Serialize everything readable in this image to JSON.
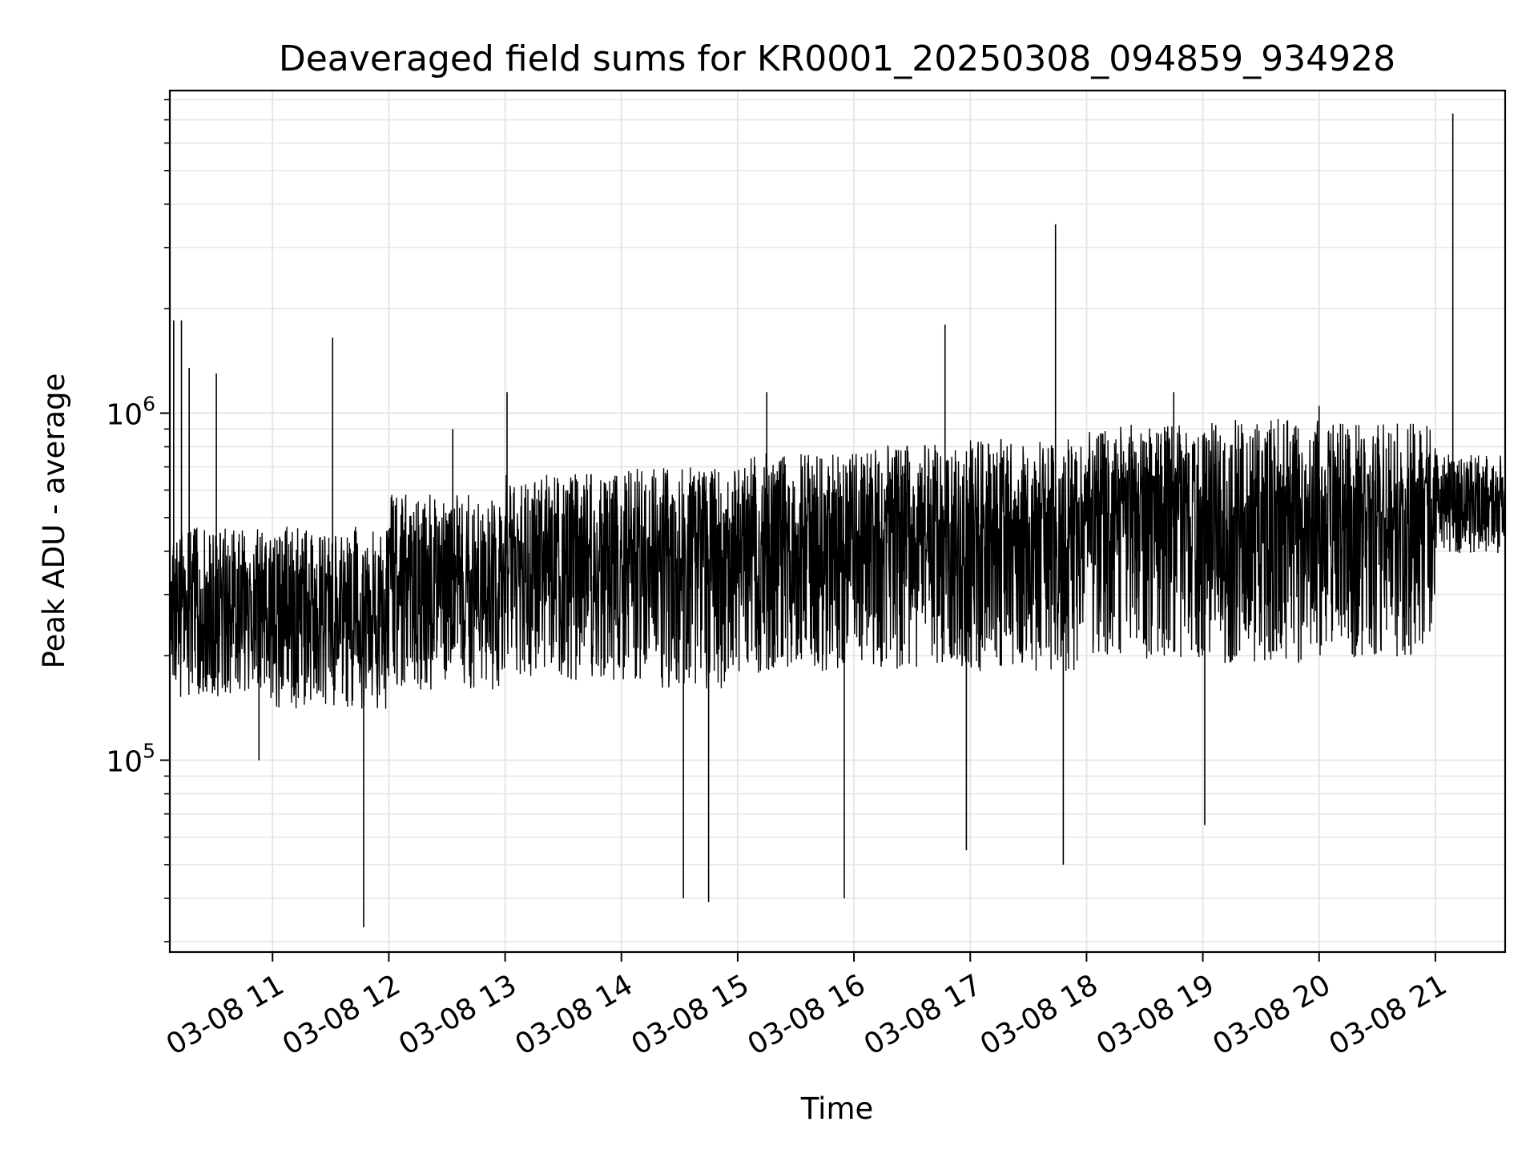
{
  "chart_data": {
    "type": "line",
    "title": "Deaveraged field sums for KR0001_20250308_094859_934928",
    "xlabel": "Time",
    "ylabel": "Peak ADU - average",
    "yscale": "log",
    "xlim": [
      "2025-03-08 10:07",
      "2025-03-08 21:36"
    ],
    "ylim": [
      28000,
      8500000
    ],
    "grid": "on",
    "legend": "none",
    "line_color": "#000000",
    "x_ticks": [
      {
        "x": "2025-03-08 11:00",
        "label": "03-08 11"
      },
      {
        "x": "2025-03-08 12:00",
        "label": "03-08 12"
      },
      {
        "x": "2025-03-08 13:00",
        "label": "03-08 13"
      },
      {
        "x": "2025-03-08 14:00",
        "label": "03-08 14"
      },
      {
        "x": "2025-03-08 15:00",
        "label": "03-08 15"
      },
      {
        "x": "2025-03-08 16:00",
        "label": "03-08 16"
      },
      {
        "x": "2025-03-08 17:00",
        "label": "03-08 17"
      },
      {
        "x": "2025-03-08 18:00",
        "label": "03-08 18"
      },
      {
        "x": "2025-03-08 19:00",
        "label": "03-08 19"
      },
      {
        "x": "2025-03-08 20:00",
        "label": "03-08 20"
      },
      {
        "x": "2025-03-08 21:00",
        "label": "03-08 21"
      }
    ],
    "y_ticks": [
      {
        "value": 100000,
        "base": "10",
        "exp": "5"
      },
      {
        "value": 1000000,
        "base": "10",
        "exp": "6"
      }
    ],
    "segments": [
      {
        "start": "2025-03-08 10:07",
        "end": "2025-03-08 11:00",
        "y_low": 180000,
        "y_typical": 270000,
        "y_high": 420000
      },
      {
        "start": "2025-03-08 11:00",
        "end": "2025-03-08 12:00",
        "y_low": 170000,
        "y_typical": 260000,
        "y_high": 420000
      },
      {
        "start": "2025-03-08 12:00",
        "end": "2025-03-08 13:00",
        "y_low": 200000,
        "y_typical": 330000,
        "y_high": 520000
      },
      {
        "start": "2025-03-08 13:00",
        "end": "2025-03-08 14:00",
        "y_low": 220000,
        "y_typical": 390000,
        "y_high": 600000
      },
      {
        "start": "2025-03-08 14:00",
        "end": "2025-03-08 15:00",
        "y_low": 210000,
        "y_typical": 380000,
        "y_high": 620000
      },
      {
        "start": "2025-03-08 15:00",
        "end": "2025-03-08 16:00",
        "y_low": 230000,
        "y_typical": 420000,
        "y_high": 680000
      },
      {
        "start": "2025-03-08 16:00",
        "end": "2025-03-08 17:00",
        "y_low": 240000,
        "y_typical": 440000,
        "y_high": 720000
      },
      {
        "start": "2025-03-08 17:00",
        "end": "2025-03-08 18:00",
        "y_low": 240000,
        "y_typical": 460000,
        "y_high": 750000
      },
      {
        "start": "2025-03-08 18:00",
        "end": "2025-03-08 19:00",
        "y_low": 260000,
        "y_typical": 500000,
        "y_high": 820000
      },
      {
        "start": "2025-03-08 19:00",
        "end": "2025-03-08 20:00",
        "y_low": 260000,
        "y_typical": 520000,
        "y_high": 850000
      },
      {
        "start": "2025-03-08 20:00",
        "end": "2025-03-08 21:00",
        "y_low": 260000,
        "y_typical": 480000,
        "y_high": 820000
      },
      {
        "start": "2025-03-08 21:00",
        "end": "2025-03-08 21:36",
        "y_low": 440000,
        "y_typical": 560000,
        "y_high": 720000
      }
    ],
    "peaks": [
      {
        "x": "2025-03-08 10:09",
        "y": 1850000
      },
      {
        "x": "2025-03-08 10:13",
        "y": 1850000
      },
      {
        "x": "2025-03-08 10:17",
        "y": 1350000
      },
      {
        "x": "2025-03-08 10:31",
        "y": 1300000
      },
      {
        "x": "2025-03-08 10:53",
        "y": 100000
      },
      {
        "x": "2025-03-08 11:31",
        "y": 1650000
      },
      {
        "x": "2025-03-08 11:47",
        "y": 33000
      },
      {
        "x": "2025-03-08 12:33",
        "y": 900000
      },
      {
        "x": "2025-03-08 13:01",
        "y": 1150000
      },
      {
        "x": "2025-03-08 14:32",
        "y": 40000
      },
      {
        "x": "2025-03-08 14:45",
        "y": 39000
      },
      {
        "x": "2025-03-08 15:15",
        "y": 1150000
      },
      {
        "x": "2025-03-08 15:55",
        "y": 40000
      },
      {
        "x": "2025-03-08 16:47",
        "y": 1800000
      },
      {
        "x": "2025-03-08 16:58",
        "y": 55000
      },
      {
        "x": "2025-03-08 17:44",
        "y": 3500000
      },
      {
        "x": "2025-03-08 17:48",
        "y": 50000
      },
      {
        "x": "2025-03-08 18:45",
        "y": 1150000
      },
      {
        "x": "2025-03-08 19:01",
        "y": 65000
      },
      {
        "x": "2025-03-08 20:00",
        "y": 1050000
      },
      {
        "x": "2025-03-08 21:09",
        "y": 7300000
      }
    ]
  }
}
